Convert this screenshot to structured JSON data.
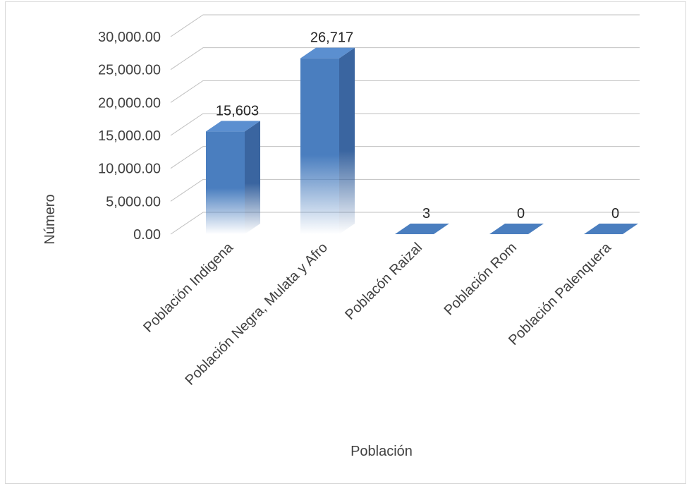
{
  "chart_data": {
    "type": "bar",
    "categories": [
      "Población Indigena",
      "Población Negra, Mulata y Afro",
      "Poblacón Raizal",
      "Población Rom",
      "Población Palenquera"
    ],
    "values": [
      15603,
      26717,
      3,
      0,
      0
    ],
    "data_labels": [
      "15,603",
      "26,717",
      "3",
      "0",
      "0"
    ],
    "ylabel": "Número",
    "xlabel": "Población",
    "ylim": [
      0,
      30000
    ],
    "yticks": [
      "0.00",
      "5,000.00",
      "10,000.00",
      "15,000.00",
      "20,000.00",
      "25,000.00",
      "30,000.00"
    ],
    "grid": true,
    "colors": {
      "bar_front": "#4a7ebf",
      "bar_side": "#3a65a0",
      "bar_top": "#5b8fd0",
      "grid": "#c0c0c0"
    }
  }
}
